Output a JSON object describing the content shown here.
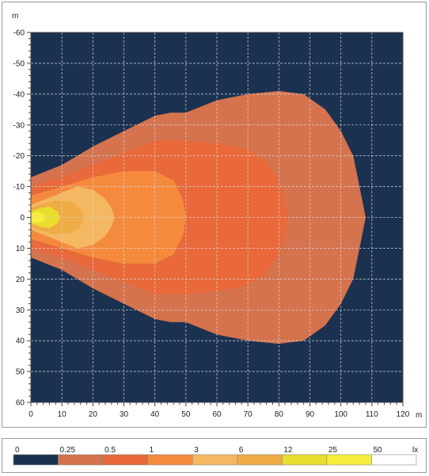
{
  "chart_data": {
    "type": "heatmap",
    "xlabel": "m",
    "ylabel": "m",
    "xlim": [
      0,
      120
    ],
    "ylim": [
      -60,
      60
    ],
    "y_axis_inverted": true,
    "x_ticks": [
      "0",
      "10",
      "20",
      "30",
      "40",
      "50",
      "60",
      "70",
      "80",
      "90",
      "100",
      "110",
      "120"
    ],
    "y_ticks": [
      "-60",
      "-50",
      "-40",
      "-30",
      "-20",
      "-10",
      "0",
      "10",
      "20",
      "30",
      "40",
      "50",
      "60"
    ],
    "grid": true,
    "background_color": "#1b3150",
    "unit_label": "lx",
    "legend_placement": "bottom",
    "legend": [
      {
        "label": "0",
        "color": "#1b3150"
      },
      {
        "label": "0.25",
        "color": "#d4734e"
      },
      {
        "label": "0.5",
        "color": "#e9693a"
      },
      {
        "label": "1",
        "color": "#f58a3d"
      },
      {
        "label": "3",
        "color": "#f4b862"
      },
      {
        "label": "6",
        "color": "#efab45"
      },
      {
        "label": "12",
        "color": "#e9dd2e"
      },
      {
        "label": "25",
        "color": "#f7ed3a"
      },
      {
        "label": "50",
        "color": "#ffffff"
      }
    ],
    "contours": [
      {
        "threshold": "0.25",
        "color": "#d4734e",
        "outline": [
          [
            0,
            -13
          ],
          [
            10,
            -17
          ],
          [
            20,
            -23
          ],
          [
            30,
            -28
          ],
          [
            40,
            -33
          ],
          [
            45,
            -34
          ],
          [
            50,
            -34
          ],
          [
            55,
            -36
          ],
          [
            60,
            -38
          ],
          [
            70,
            -40
          ],
          [
            80,
            -41
          ],
          [
            88,
            -40
          ],
          [
            95,
            -35
          ],
          [
            100,
            -28
          ],
          [
            104,
            -20
          ],
          [
            106,
            -10
          ],
          [
            108,
            0
          ],
          [
            106,
            10
          ],
          [
            104,
            20
          ],
          [
            100,
            28
          ],
          [
            95,
            35
          ],
          [
            88,
            40
          ],
          [
            80,
            41
          ],
          [
            70,
            40
          ],
          [
            60,
            38
          ],
          [
            55,
            36
          ],
          [
            50,
            34
          ],
          [
            45,
            34
          ],
          [
            40,
            33
          ],
          [
            30,
            28
          ],
          [
            20,
            23
          ],
          [
            10,
            17
          ],
          [
            0,
            13
          ]
        ]
      },
      {
        "threshold": "0.5",
        "color": "#e9693a",
        "outline": [
          [
            0,
            -10
          ],
          [
            10,
            -13
          ],
          [
            20,
            -17
          ],
          [
            30,
            -21
          ],
          [
            40,
            -25
          ],
          [
            50,
            -25
          ],
          [
            60,
            -24
          ],
          [
            70,
            -22
          ],
          [
            76,
            -18
          ],
          [
            80,
            -12
          ],
          [
            82,
            -6
          ],
          [
            83,
            0
          ],
          [
            82,
            6
          ],
          [
            80,
            12
          ],
          [
            76,
            18
          ],
          [
            70,
            22
          ],
          [
            60,
            24
          ],
          [
            50,
            25
          ],
          [
            40,
            25
          ],
          [
            30,
            21
          ],
          [
            20,
            17
          ],
          [
            10,
            13
          ],
          [
            0,
            10
          ]
        ]
      },
      {
        "threshold": "1",
        "color": "#f58a3d",
        "outline": [
          [
            0,
            -7
          ],
          [
            10,
            -10
          ],
          [
            20,
            -13
          ],
          [
            30,
            -15
          ],
          [
            40,
            -15
          ],
          [
            46,
            -12
          ],
          [
            49,
            -6
          ],
          [
            50,
            0
          ],
          [
            49,
            6
          ],
          [
            46,
            12
          ],
          [
            40,
            15
          ],
          [
            30,
            15
          ],
          [
            20,
            13
          ],
          [
            10,
            10
          ],
          [
            0,
            7
          ]
        ]
      },
      {
        "threshold": "3",
        "color": "#f4b862",
        "outline": [
          [
            0,
            -4
          ],
          [
            5,
            -6
          ],
          [
            10,
            -8
          ],
          [
            15,
            -10
          ],
          [
            20,
            -9
          ],
          [
            24,
            -6
          ],
          [
            26,
            -3
          ],
          [
            27,
            0
          ],
          [
            26,
            3
          ],
          [
            24,
            6
          ],
          [
            20,
            9
          ],
          [
            15,
            10
          ],
          [
            10,
            8
          ],
          [
            5,
            6
          ],
          [
            0,
            4
          ]
        ]
      },
      {
        "threshold": "6",
        "color": "#efab45",
        "outline": [
          [
            0,
            -3
          ],
          [
            4,
            -4.5
          ],
          [
            8,
            -5.5
          ],
          [
            13,
            -5
          ],
          [
            16,
            -3
          ],
          [
            17,
            0
          ],
          [
            16,
            3
          ],
          [
            13,
            5
          ],
          [
            8,
            5.5
          ],
          [
            4,
            4.5
          ],
          [
            0,
            3
          ]
        ]
      },
      {
        "threshold": "12",
        "color": "#e9dd2e",
        "outline": [
          [
            0,
            -2
          ],
          [
            3,
            -3
          ],
          [
            6,
            -3.5
          ],
          [
            8.5,
            -2
          ],
          [
            9.5,
            0
          ],
          [
            8.5,
            2
          ],
          [
            6,
            3.5
          ],
          [
            3,
            3
          ],
          [
            0,
            2
          ]
        ]
      },
      {
        "threshold": "25",
        "color": "#f7ed3a",
        "outline": [
          [
            0,
            -1.2
          ],
          [
            2,
            -1.8
          ],
          [
            3.8,
            -1.3
          ],
          [
            4.5,
            0
          ],
          [
            3.8,
            1.3
          ],
          [
            2,
            1.8
          ],
          [
            0,
            1.2
          ]
        ]
      }
    ]
  }
}
